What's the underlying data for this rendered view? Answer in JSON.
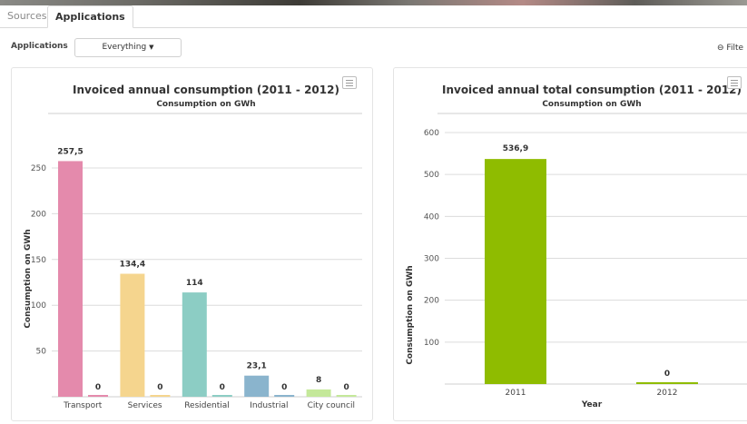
{
  "tabs": [
    {
      "label": "Sources",
      "active": false
    },
    {
      "label": "Applications",
      "active": true
    }
  ],
  "filter": {
    "label": "Applications",
    "dropdown_value": "Everything",
    "filter_button": "Filte"
  },
  "colors": {
    "transport": "#e48aac",
    "services": "#f5d58e",
    "residential": "#8ccdc4",
    "industrial": "#8ab4cd",
    "city_council": "#c4e89a",
    "total": "#8fbc00"
  },
  "chart_data": [
    {
      "type": "bar",
      "title": "Invoiced annual consumption (2011 - 2012)",
      "subtitle": "Consumption on GWh",
      "ylabel": "Consumption on GWh",
      "xlabel": "",
      "categories": [
        "Transport",
        "Services",
        "Residential",
        "Industrial",
        "City council"
      ],
      "series": [
        {
          "values": [
            257.5,
            134.4,
            114,
            23.1,
            8
          ]
        },
        {
          "values": [
            0,
            0,
            0,
            0,
            0
          ]
        }
      ],
      "data_labels": [
        [
          "257,5",
          "134,4",
          "114",
          "23,1",
          "8"
        ],
        [
          "0",
          "0",
          "0",
          "0",
          "0"
        ]
      ],
      "yticks": [
        "50",
        "100",
        "150",
        "200",
        "250"
      ],
      "ylim": [
        0,
        260
      ],
      "grid": true
    },
    {
      "type": "bar",
      "title": "Invoiced annual total consumption (2011 - 2012)",
      "subtitle": "Consumption on GWh",
      "ylabel": "Consumption on GWh",
      "xlabel": "Year",
      "categories": [
        "2011",
        "2012"
      ],
      "values": [
        536.9,
        0
      ],
      "data_labels": [
        "536,9",
        "0"
      ],
      "yticks": [
        "100",
        "200",
        "300",
        "400",
        "500",
        "600"
      ],
      "ylim": [
        0,
        600
      ],
      "grid": true
    }
  ]
}
